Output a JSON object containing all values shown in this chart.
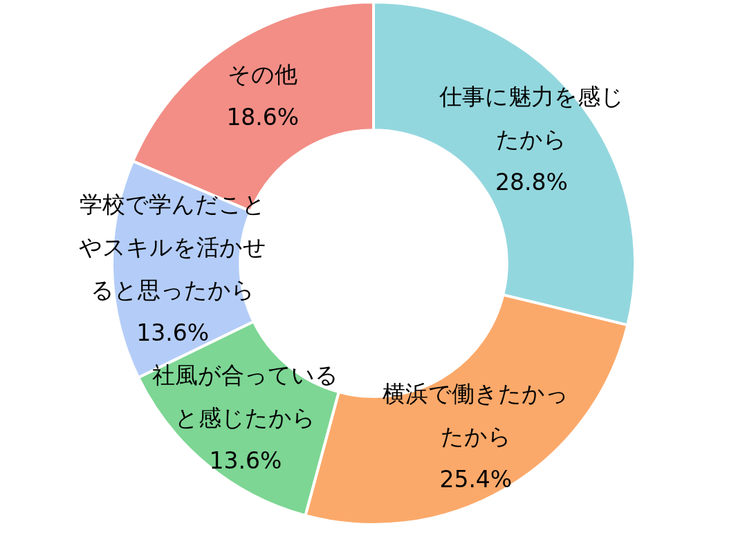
{
  "chart_data": {
    "type": "donut",
    "categories": [
      "仕事に魅力を感じたから",
      "横浜で働きたかったから",
      "社風が合っていると感じたから",
      "学校で学んだことやスキルを活かせると思ったから",
      "その他"
    ],
    "values": [
      28.8,
      25.4,
      13.6,
      13.6,
      18.6
    ],
    "colors": [
      "#93d7de",
      "#fba96a",
      "#7dd694",
      "#b4cdf8",
      "#f28e86"
    ],
    "value_labels": [
      "28.8%",
      "25.4%",
      "13.6%",
      "13.6%",
      "18.6%"
    ]
  }
}
